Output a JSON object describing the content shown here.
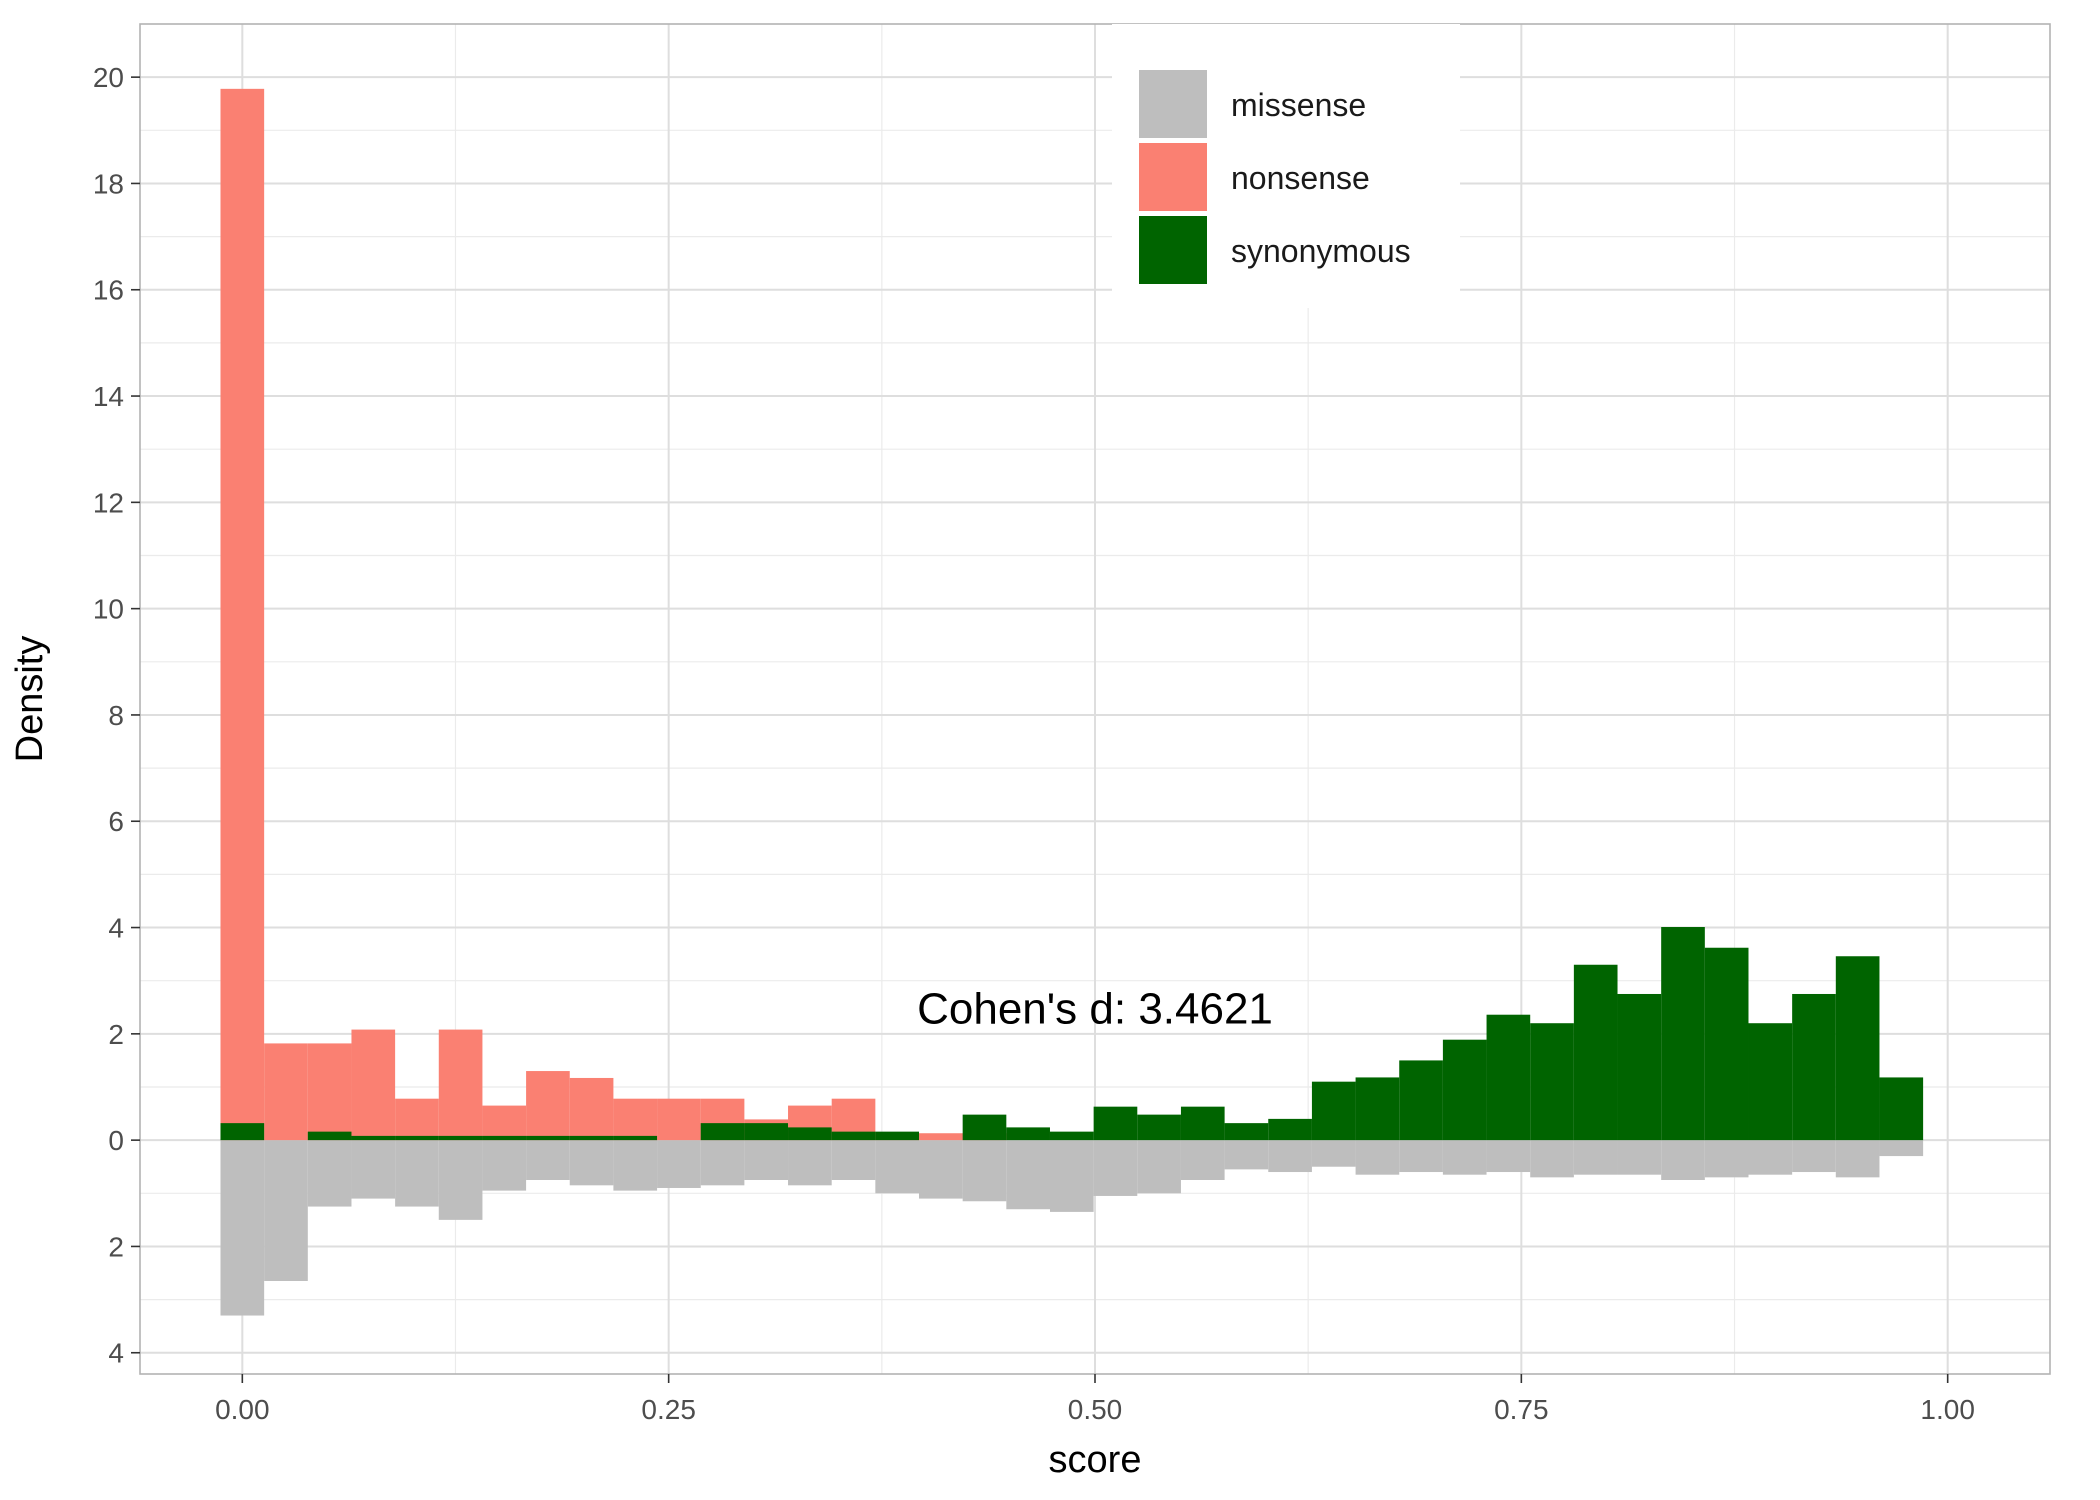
{
  "chart_data": {
    "type": "bar",
    "title": "",
    "xlabel": "score",
    "ylabel": "Density",
    "xlim": [
      -0.06,
      1.06
    ],
    "ylim": [
      -4.4,
      21.0
    ],
    "x_ticks": [
      0.0,
      0.25,
      0.5,
      0.75,
      1.0
    ],
    "x_tick_labels": [
      "0.00",
      "0.25",
      "0.50",
      "0.75",
      "1.00"
    ],
    "y_ticks": [
      20,
      18,
      16,
      14,
      12,
      10,
      8,
      6,
      4,
      2,
      0,
      -2,
      -4
    ],
    "y_tick_labels": [
      "20",
      "18",
      "16",
      "14",
      "12",
      "10",
      "8",
      "6",
      "4",
      "2",
      "0",
      "2",
      "4"
    ],
    "grid": true,
    "legend_position": "top-center",
    "bin_width": 0.0256,
    "bin_start": -0.0128,
    "series": [
      {
        "name": "missense",
        "direction": "down",
        "color": "#bebebe",
        "values": [
          3.3,
          2.65,
          1.25,
          1.1,
          1.25,
          1.5,
          0.95,
          0.75,
          0.85,
          0.95,
          0.9,
          0.85,
          0.75,
          0.85,
          0.75,
          1.0,
          1.1,
          1.15,
          1.3,
          1.35,
          1.05,
          1.0,
          0.75,
          0.55,
          0.6,
          0.5,
          0.65,
          0.6,
          0.65,
          0.6,
          0.7,
          0.65,
          0.65,
          0.75,
          0.7,
          0.65,
          0.6,
          0.7,
          0.3
        ]
      },
      {
        "name": "nonsense",
        "direction": "up",
        "color": "#fa8072",
        "values": [
          19.78,
          1.82,
          1.82,
          2.08,
          0.78,
          2.08,
          0.65,
          1.3,
          1.17,
          0.78,
          0.78,
          0.78,
          0.39,
          0.65,
          0.78,
          0.13,
          0.13,
          0.13,
          0.0,
          0.0,
          0.0,
          0.0,
          0.0,
          0.0,
          0.0,
          0.0,
          0.0,
          0.0,
          0.0,
          0.0,
          0.0,
          0.0,
          0.0,
          0.0,
          0.0,
          0.0,
          0.0,
          0.0,
          0.0
        ]
      },
      {
        "name": "synonymous",
        "direction": "up",
        "color": "#006400",
        "values": [
          0.32,
          0.0,
          0.16,
          0.08,
          0.08,
          0.08,
          0.08,
          0.08,
          0.08,
          0.08,
          0.0,
          0.32,
          0.32,
          0.24,
          0.16,
          0.16,
          0.0,
          0.48,
          0.24,
          0.16,
          0.63,
          0.48,
          0.63,
          0.32,
          0.4,
          1.1,
          1.18,
          1.5,
          1.89,
          2.36,
          2.2,
          3.3,
          2.75,
          4.01,
          3.62,
          2.2,
          2.75,
          3.46,
          1.18
        ]
      }
    ],
    "annotation": "Cohen's d:  3.4621",
    "annotation_x": 0.5,
    "annotation_y": 2.5
  }
}
